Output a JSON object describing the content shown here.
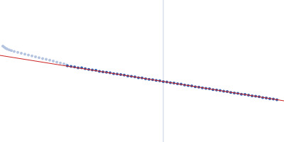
{
  "chart_data": {
    "type": "scatter",
    "xlim": [
      0,
      400
    ],
    "ylim": [
      0,
      200
    ],
    "tick_labels": false,
    "grid": false,
    "series": [
      {
        "type": "line",
        "color": "#c8d0e0",
        "line_style": "solid",
        "x": [
          230,
          230
        ],
        "values": [
          0,
          200
        ]
      },
      {
        "type": "scatter",
        "color": "#b4c4e0",
        "marker": "circle",
        "x": [
          4,
          6,
          8,
          10,
          13,
          16,
          20,
          25,
          30,
          35,
          40,
          45,
          50,
          55,
          60,
          65,
          70,
          75,
          80,
          85,
          90,
          94
        ],
        "values": [
          135,
          133.5,
          132,
          131,
          129.8,
          128.8,
          127.6,
          126.3,
          125,
          123.7,
          122.4,
          121.2,
          120,
          118.8,
          117.6,
          116.4,
          115.2,
          113.9,
          112.6,
          111.3,
          110,
          108.6
        ]
      },
      {
        "type": "scatter",
        "color": "#2f5fb0",
        "marker": "circle",
        "x": [
          95,
          100,
          105,
          110,
          115,
          120,
          125,
          130,
          135,
          140,
          145,
          150,
          155,
          160,
          165,
          170,
          175,
          180,
          185,
          190,
          195,
          200,
          205,
          210,
          215,
          220,
          225,
          230,
          235,
          240,
          245,
          250,
          255,
          260,
          265,
          270,
          275,
          280,
          285,
          290,
          295,
          300,
          305,
          310,
          315,
          320,
          325,
          330,
          335,
          340,
          345,
          350,
          355,
          360,
          365,
          370,
          375,
          380,
          385,
          390
        ],
        "values": [
          107.2,
          106.5,
          105.8,
          104.6,
          104.5,
          103.2,
          102.3,
          101.5,
          101.0,
          99.4,
          98.8,
          98.3,
          97.4,
          96.2,
          95.7,
          95.0,
          94.2,
          93.0,
          92.6,
          91.7,
          90.6,
          90.3,
          89.1,
          88.2,
          87.7,
          86.7,
          86.2,
          85.1,
          84.6,
          83.4,
          83.0,
          81.9,
          81.4,
          80.2,
          79.6,
          78.9,
          77.8,
          77.3,
          76.3,
          75.4,
          74.9,
          73.8,
          73.2,
          72.6,
          71.4,
          70.9,
          69.8,
          69.1,
          68.5,
          67.3,
          66.9,
          66.0,
          65.1,
          64.4,
          63.7,
          62.6,
          62.1,
          61.0,
          60.6,
          59.4
        ]
      },
      {
        "type": "line",
        "color": "#cc2222",
        "line_style": "solid",
        "x": [
          0,
          400
        ],
        "values": [
          122,
          58
        ]
      }
    ]
  }
}
